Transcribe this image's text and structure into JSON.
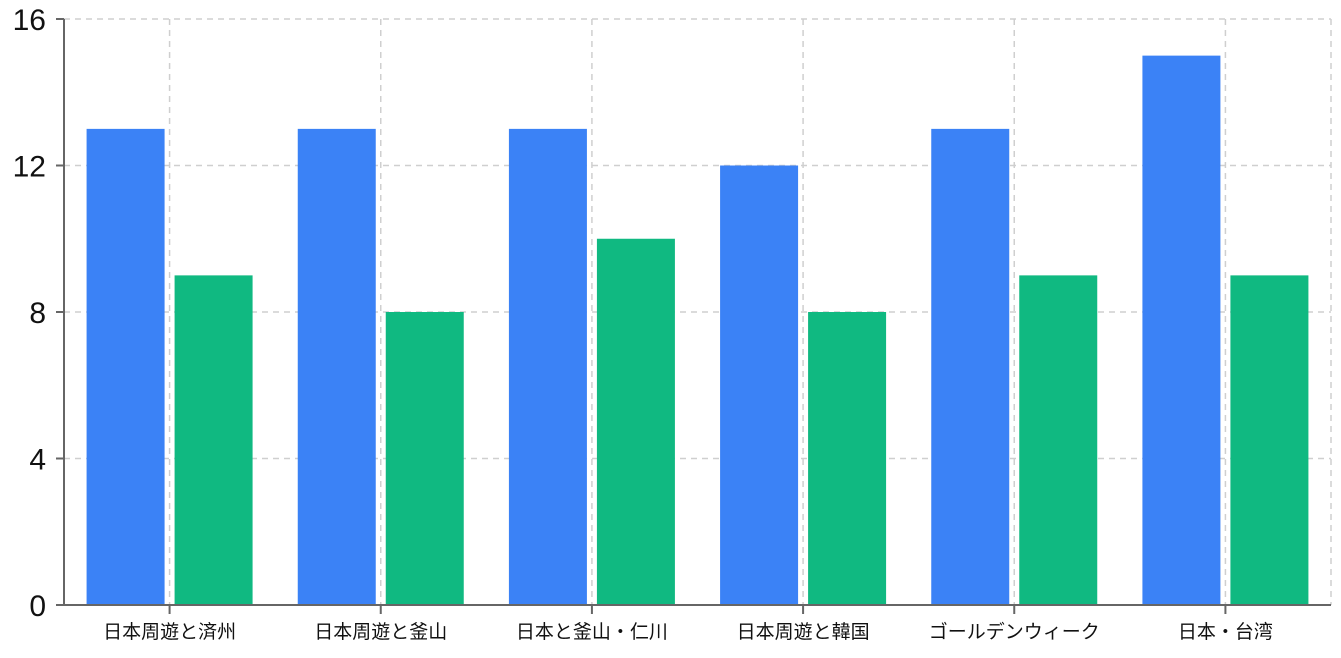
{
  "chart_data": {
    "type": "bar",
    "categories": [
      "日本周遊と済州",
      "日本周遊と釜山",
      "日本と釜山・仁川",
      "日本周遊と韓国",
      "ゴールデンウィーク",
      "日本・台湾"
    ],
    "series": [
      {
        "values": [
          13,
          13,
          13,
          12,
          13,
          15
        ],
        "color": "#3b82f6"
      },
      {
        "values": [
          9,
          8,
          10,
          8,
          9,
          9
        ],
        "color": "#10b981"
      }
    ],
    "title": "",
    "xlabel": "",
    "ylabel": "",
    "ylim": [
      0,
      16
    ],
    "yticks": [
      0,
      4,
      8,
      12,
      16
    ],
    "grid": true,
    "legend": "none"
  }
}
